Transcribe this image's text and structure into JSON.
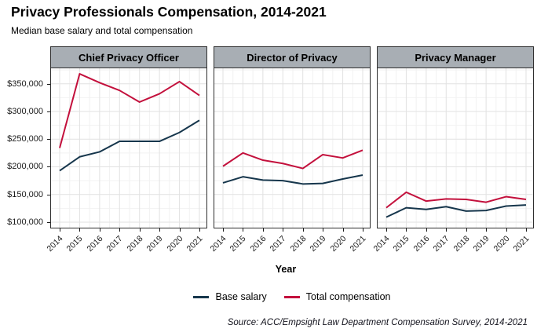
{
  "chart_data": {
    "type": "line",
    "title": "Privacy Professionals Compensation, 2014-2021",
    "subtitle": "Median base salary and total compensation",
    "xlabel": "Year",
    "caption": "Source: ACC/Empsight Law Department Compensation Survey, 2014-2021",
    "x": [
      "2014",
      "2015",
      "2016",
      "2017",
      "2018",
      "2019",
      "2020",
      "2021"
    ],
    "ylim": [
      90000,
      378000
    ],
    "y_major_ticks": [
      100000,
      150000,
      200000,
      250000,
      300000,
      350000
    ],
    "y_tick_labels": [
      "$100,000",
      "$150,000",
      "$200,000",
      "$250,000",
      "$300,000",
      "$350,000"
    ],
    "grid": true,
    "legend_position": "bottom",
    "facets": [
      {
        "label": "Chief Privacy Officer",
        "series": [
          {
            "name": "Base salary",
            "values": [
              193000,
              218000,
              227000,
              246000,
              246000,
              246000,
              262000,
              284000
            ]
          },
          {
            "name": "Total compensation",
            "values": [
              234000,
              368000,
              352000,
              338000,
              317000,
              332000,
              354000,
              329000
            ]
          }
        ]
      },
      {
        "label": "Director of Privacy",
        "series": [
          {
            "name": "Base salary",
            "values": [
              171000,
              182000,
              176000,
              175000,
              169000,
              170000,
              178000,
              185000
            ]
          },
          {
            "name": "Total compensation",
            "values": [
              201000,
              225000,
              212000,
              206000,
              197000,
              222000,
              216000,
              230000
            ]
          }
        ]
      },
      {
        "label": "Privacy Manager",
        "series": [
          {
            "name": "Base salary",
            "values": [
              109000,
              126000,
              123000,
              128000,
              120000,
              121000,
              129000,
              131000
            ]
          },
          {
            "name": "Total compensation",
            "values": [
              126000,
              154000,
              138000,
              142000,
              141000,
              136000,
              146000,
              141000
            ]
          }
        ]
      }
    ],
    "legend": [
      {
        "label": "Base salary",
        "color": "#16364C"
      },
      {
        "label": "Total compensation",
        "color": "#C3103C"
      }
    ],
    "layout": {
      "strip_bg": "#A8AEB4",
      "panel_border": "#2e2e2e",
      "grid_major": "#E2E2E2",
      "grid_minor": "#F2F2F2",
      "tick_color": "#1a1a1a"
    }
  }
}
